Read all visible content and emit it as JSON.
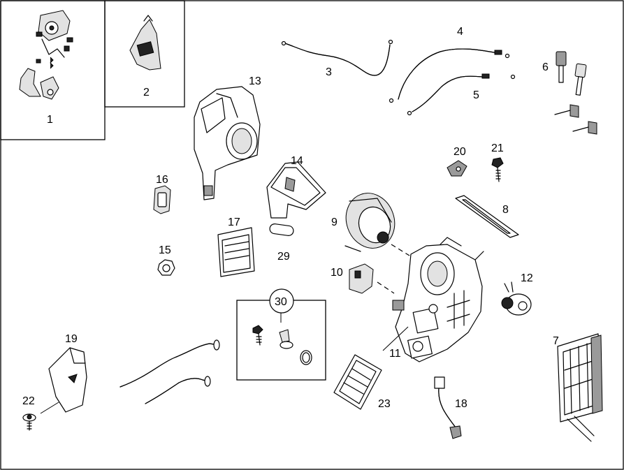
{
  "diagram": {
    "callouts": {
      "c1": "1",
      "c2": "2",
      "c3": "3",
      "c4": "4",
      "c5": "5",
      "c6": "6",
      "c7": "7",
      "c8": "8",
      "c9": "9",
      "c10": "10",
      "c11": "11",
      "c12": "12",
      "c13": "13",
      "c14": "14",
      "c15": "15",
      "c16": "16",
      "c17": "17",
      "c18": "18",
      "c19": "19",
      "c20": "20",
      "c21": "21",
      "c22": "22",
      "c23": "23",
      "c29": "29",
      "c30": "30"
    }
  }
}
